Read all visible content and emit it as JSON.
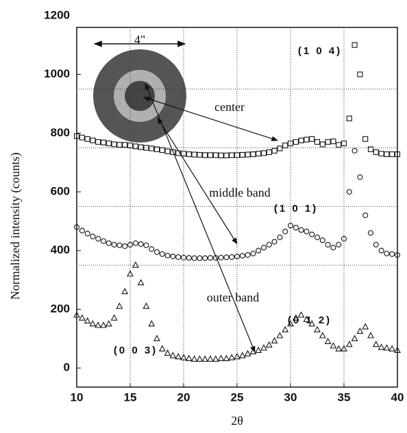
{
  "chart_data": {
    "type": "scatter",
    "x_label": "2θ",
    "y_label": "Normalized intensity (counts)",
    "xlim": [
      10,
      40
    ],
    "ylim": [
      -65,
      1160
    ],
    "xticks": [
      10,
      15,
      20,
      25,
      30,
      35,
      40
    ],
    "yticks": [
      0,
      200,
      400,
      600,
      800,
      1000,
      1200
    ],
    "grid_x": [
      15,
      20,
      25,
      30,
      35
    ],
    "grid_y": [
      350,
      550,
      750,
      950
    ],
    "inset_label": "4\"",
    "annotations": [
      "(1 0 4)",
      "center",
      "middle band",
      "(1 0 1)",
      "outer band",
      "(0 1 2)",
      "(0 0 3)"
    ],
    "x": [
      10,
      10.5,
      11,
      11.5,
      12,
      12.5,
      13,
      13.5,
      14,
      14.5,
      15,
      15.5,
      16,
      16.5,
      17,
      17.5,
      18,
      18.5,
      19,
      19.5,
      20,
      20.5,
      21,
      21.5,
      22,
      22.5,
      23,
      23.5,
      24,
      24.5,
      25,
      25.5,
      26,
      26.5,
      27,
      27.5,
      28,
      28.5,
      29,
      29.5,
      30,
      30.5,
      31,
      31.5,
      32,
      32.5,
      33,
      33.5,
      34,
      34.5,
      35,
      35.5,
      36,
      36.5,
      37,
      37.5,
      38,
      38.5,
      39,
      39.5,
      40
    ],
    "series": [
      {
        "name": "center",
        "marker": "square",
        "color": "#111111",
        "values": [
          790,
          785,
          780,
          775,
          770,
          768,
          765,
          762,
          760,
          760,
          758,
          755,
          752,
          750,
          748,
          745,
          742,
          738,
          735,
          732,
          730,
          728,
          727,
          726,
          725,
          725,
          725,
          724,
          724,
          725,
          725,
          726,
          727,
          728,
          730,
          732,
          735,
          740,
          748,
          758,
          765,
          770,
          775,
          778,
          780,
          770,
          762,
          770,
          772,
          760,
          765,
          850,
          1100,
          1000,
          780,
          745,
          735,
          730,
          728,
          728,
          728
        ]
      },
      {
        "name": "middle band",
        "marker": "circle",
        "color": "#111111",
        "values": [
          480,
          468,
          458,
          448,
          440,
          432,
          425,
          420,
          418,
          415,
          420,
          425,
          422,
          418,
          405,
          395,
          388,
          383,
          380,
          378,
          376,
          375,
          374,
          374,
          374,
          375,
          375,
          376,
          377,
          378,
          380,
          382,
          385,
          390,
          400,
          410,
          420,
          430,
          445,
          465,
          485,
          478,
          470,
          465,
          455,
          445,
          435,
          420,
          410,
          420,
          440,
          600,
          740,
          650,
          520,
          460,
          420,
          400,
          390,
          388,
          385
        ]
      },
      {
        "name": "outer band",
        "marker": "triangle",
        "color": "#111111",
        "values": [
          180,
          170,
          160,
          150,
          145,
          145,
          150,
          170,
          210,
          260,
          320,
          350,
          290,
          210,
          150,
          100,
          65,
          50,
          42,
          38,
          35,
          32,
          30,
          30,
          30,
          30,
          30,
          32,
          32,
          35,
          38,
          42,
          48,
          55,
          60,
          68,
          78,
          92,
          110,
          130,
          150,
          170,
          180,
          165,
          150,
          130,
          110,
          90,
          75,
          65,
          65,
          80,
          100,
          125,
          140,
          110,
          80,
          70,
          68,
          65,
          60
        ]
      }
    ]
  }
}
